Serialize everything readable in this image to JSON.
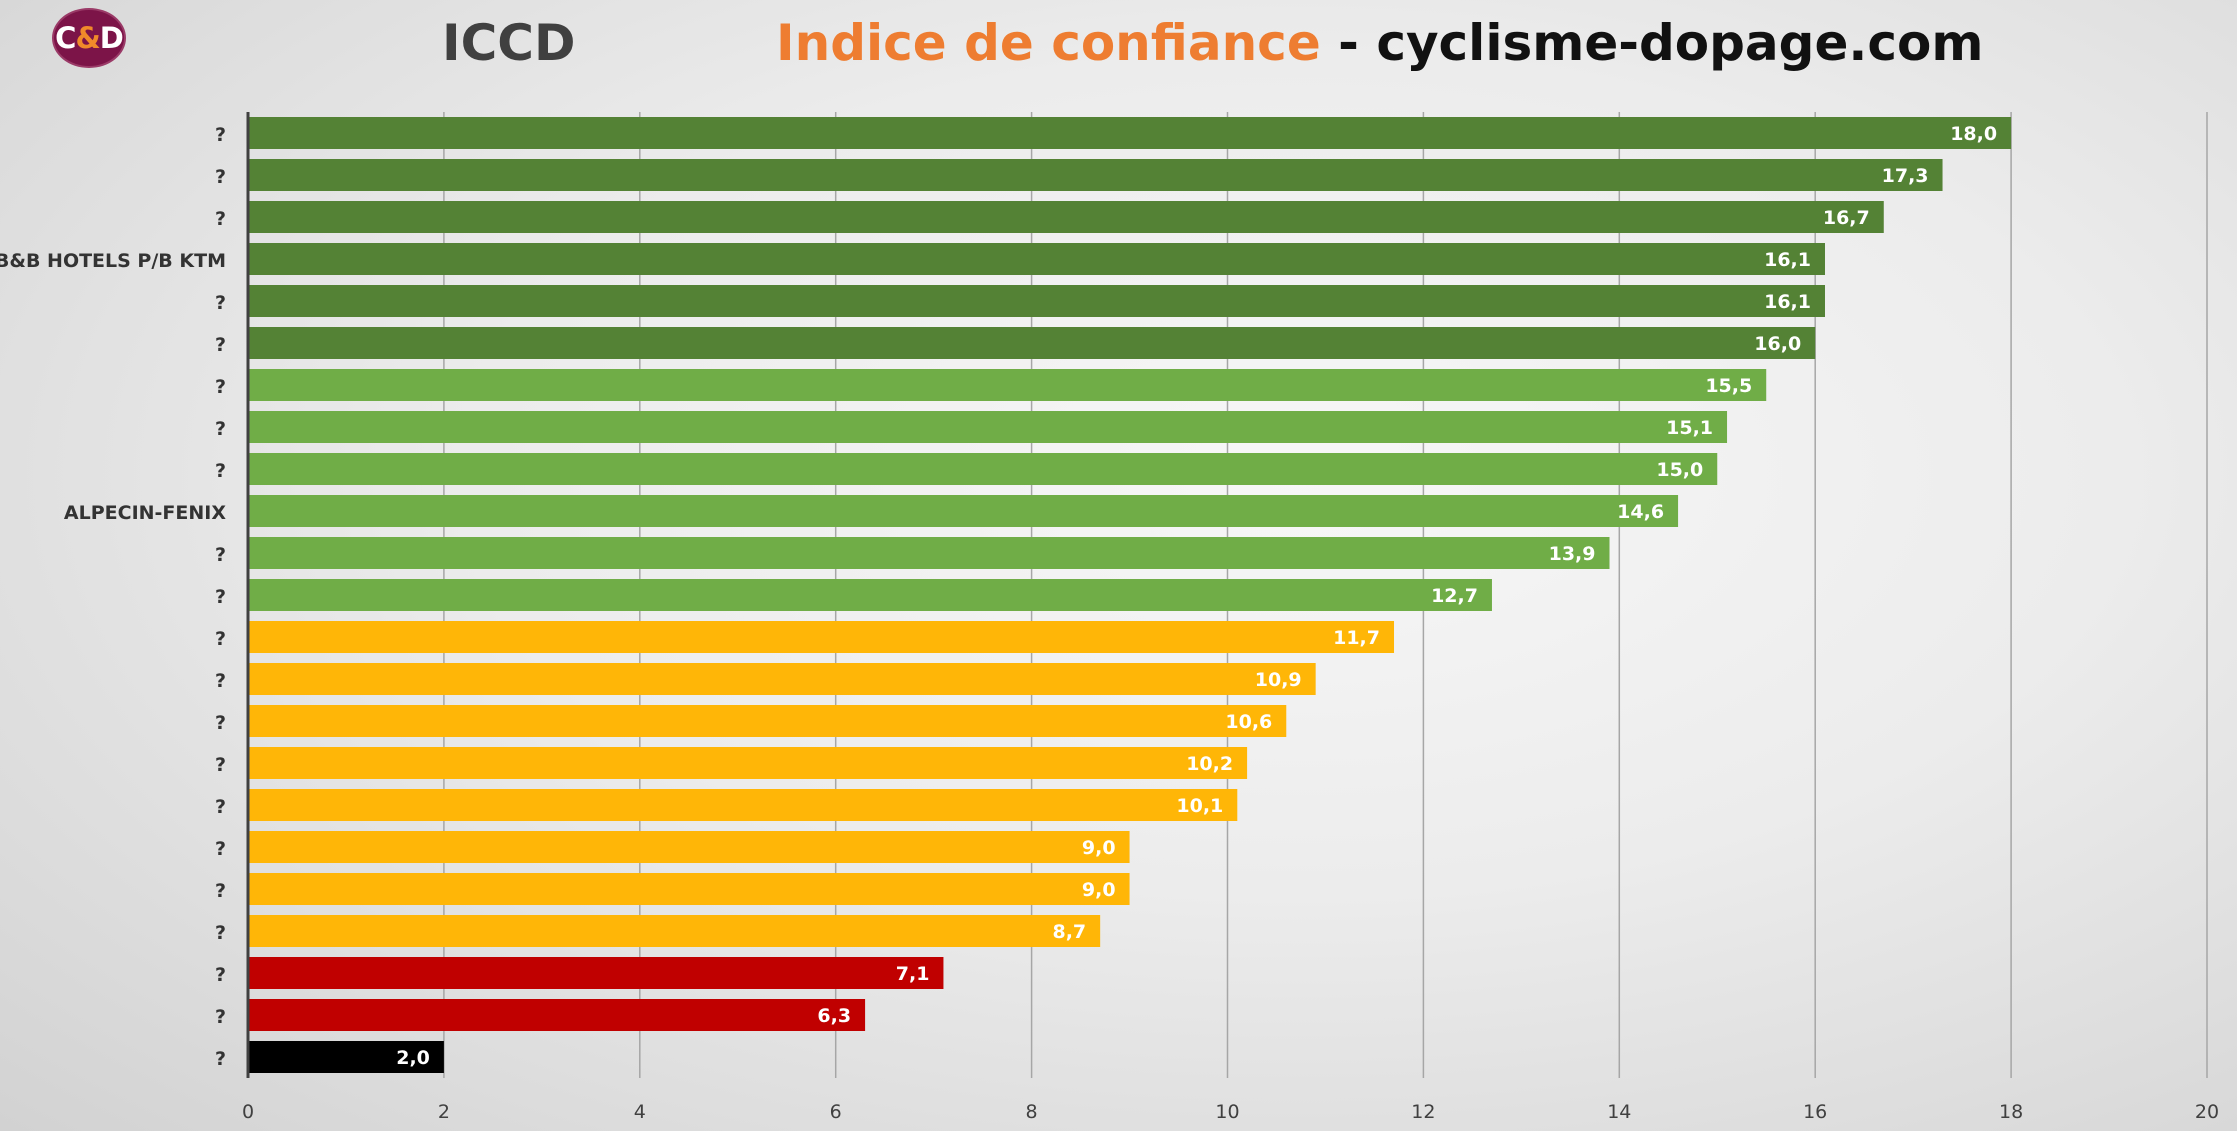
{
  "header": {
    "logo": {
      "c1": "C",
      "amp": "&",
      "c2": "D"
    },
    "iccd": "ICCD",
    "title_orange": "Indice de confiance",
    "title_dash": " - ",
    "title_site": "cyclisme-dopage.com"
  },
  "chart_data": {
    "type": "bar",
    "orientation": "horizontal",
    "title": "Indice de confiance - cyclisme-dopage.com",
    "xlim": [
      0,
      20
    ],
    "xticks": [
      "0",
      "2",
      "4",
      "6",
      "8",
      "10",
      "12",
      "14",
      "16",
      "18",
      "20"
    ],
    "grid": true,
    "legend": "none",
    "categories": [
      "?",
      "?",
      "?",
      "B&B HOTELS P/B KTM",
      "?",
      "?",
      "?",
      "?",
      "?",
      "ALPECIN-FENIX",
      "?",
      "?",
      "?",
      "?",
      "?",
      "?",
      "?",
      "?",
      "?",
      "?",
      "?",
      "?",
      "?"
    ],
    "values": [
      18.0,
      17.3,
      16.7,
      16.1,
      16.1,
      16.0,
      15.5,
      15.1,
      15.0,
      14.6,
      13.9,
      12.7,
      11.7,
      10.9,
      10.6,
      10.2,
      10.1,
      9.0,
      9.0,
      8.7,
      7.1,
      6.3,
      2.0
    ],
    "value_labels": [
      "18,0",
      "17,3",
      "16,7",
      "16,1",
      "16,1",
      "16,0",
      "15,5",
      "15,1",
      "15,0",
      "14,6",
      "13,9",
      "12,7",
      "11,7",
      "10,9",
      "10,6",
      "10,2",
      "10,1",
      "9,0",
      "9,0",
      "8,7",
      "7,1",
      "6,3",
      "2,0"
    ],
    "bar_colors": [
      "#548235",
      "#548235",
      "#548235",
      "#548235",
      "#548235",
      "#548235",
      "#70ad47",
      "#70ad47",
      "#70ad47",
      "#70ad47",
      "#70ad47",
      "#70ad47",
      "#ffb607",
      "#ffb607",
      "#ffb607",
      "#ffb607",
      "#ffb607",
      "#ffb607",
      "#ffb607",
      "#ffb607",
      "#c00000",
      "#c00000",
      "#000000"
    ]
  },
  "colors": {
    "title_orange": "#ee7d31",
    "title_dark": "#111111",
    "logo_bg": "#7c1448"
  }
}
